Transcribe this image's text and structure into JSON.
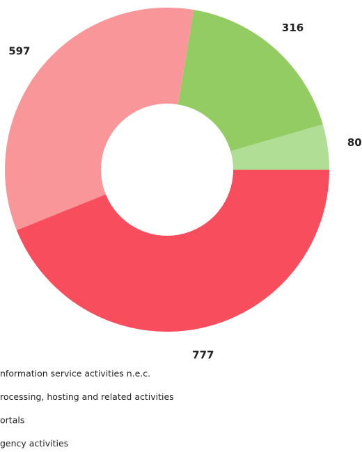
{
  "chart_data": {
    "type": "pie",
    "categories": [
      "nformation service activities n.e.c.",
      "rocessing, hosting and related activities",
      "ortals",
      "gency activities"
    ],
    "values": [
      80,
      316,
      597,
      777
    ],
    "colors": [
      "#b0de94",
      "#92cc62",
      "#f9969a",
      "#f84d5c"
    ]
  }
}
